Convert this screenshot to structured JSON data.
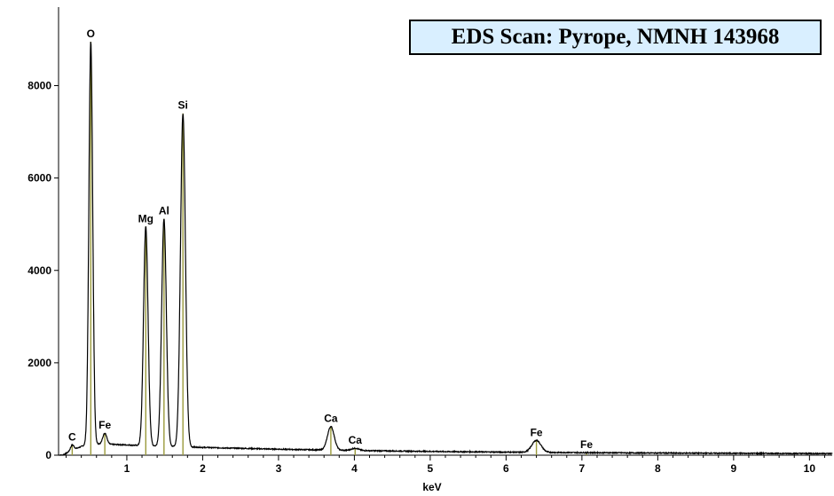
{
  "chart_data": {
    "type": "line",
    "title": "EDS Scan:  Pyrope, NMNH 143968",
    "xlabel": "keV",
    "ylabel": "",
    "xlim": [
      0.1,
      10.3
    ],
    "ylim": [
      0,
      9700
    ],
    "x_ticks": [
      1,
      2,
      3,
      4,
      5,
      6,
      7,
      8,
      9,
      10
    ],
    "y_ticks": [
      0,
      2000,
      4000,
      6000,
      8000
    ],
    "grid": false,
    "series": [
      {
        "line_color": "#000000",
        "peaks": [
          {
            "element": "C",
            "energy": 0.28,
            "counts": 220
          },
          {
            "element": "O",
            "energy": 0.525,
            "counts": 8950
          },
          {
            "element": "Fe",
            "energy": 0.71,
            "counts": 480
          },
          {
            "element": "Mg",
            "energy": 1.25,
            "counts": 4950
          },
          {
            "element": "Al",
            "energy": 1.49,
            "counts": 5120
          },
          {
            "element": "Si",
            "energy": 1.74,
            "counts": 7400
          },
          {
            "element": "Ca",
            "energy": 3.69,
            "counts": 620
          },
          {
            "element": "Ca",
            "energy": 4.01,
            "counts": 150
          },
          {
            "element": "Fe",
            "energy": 6.4,
            "counts": 320
          },
          {
            "element": "Fe",
            "energy": 7.06,
            "counts": 55
          }
        ]
      }
    ],
    "marker_line_color": "#9a9a3c"
  }
}
